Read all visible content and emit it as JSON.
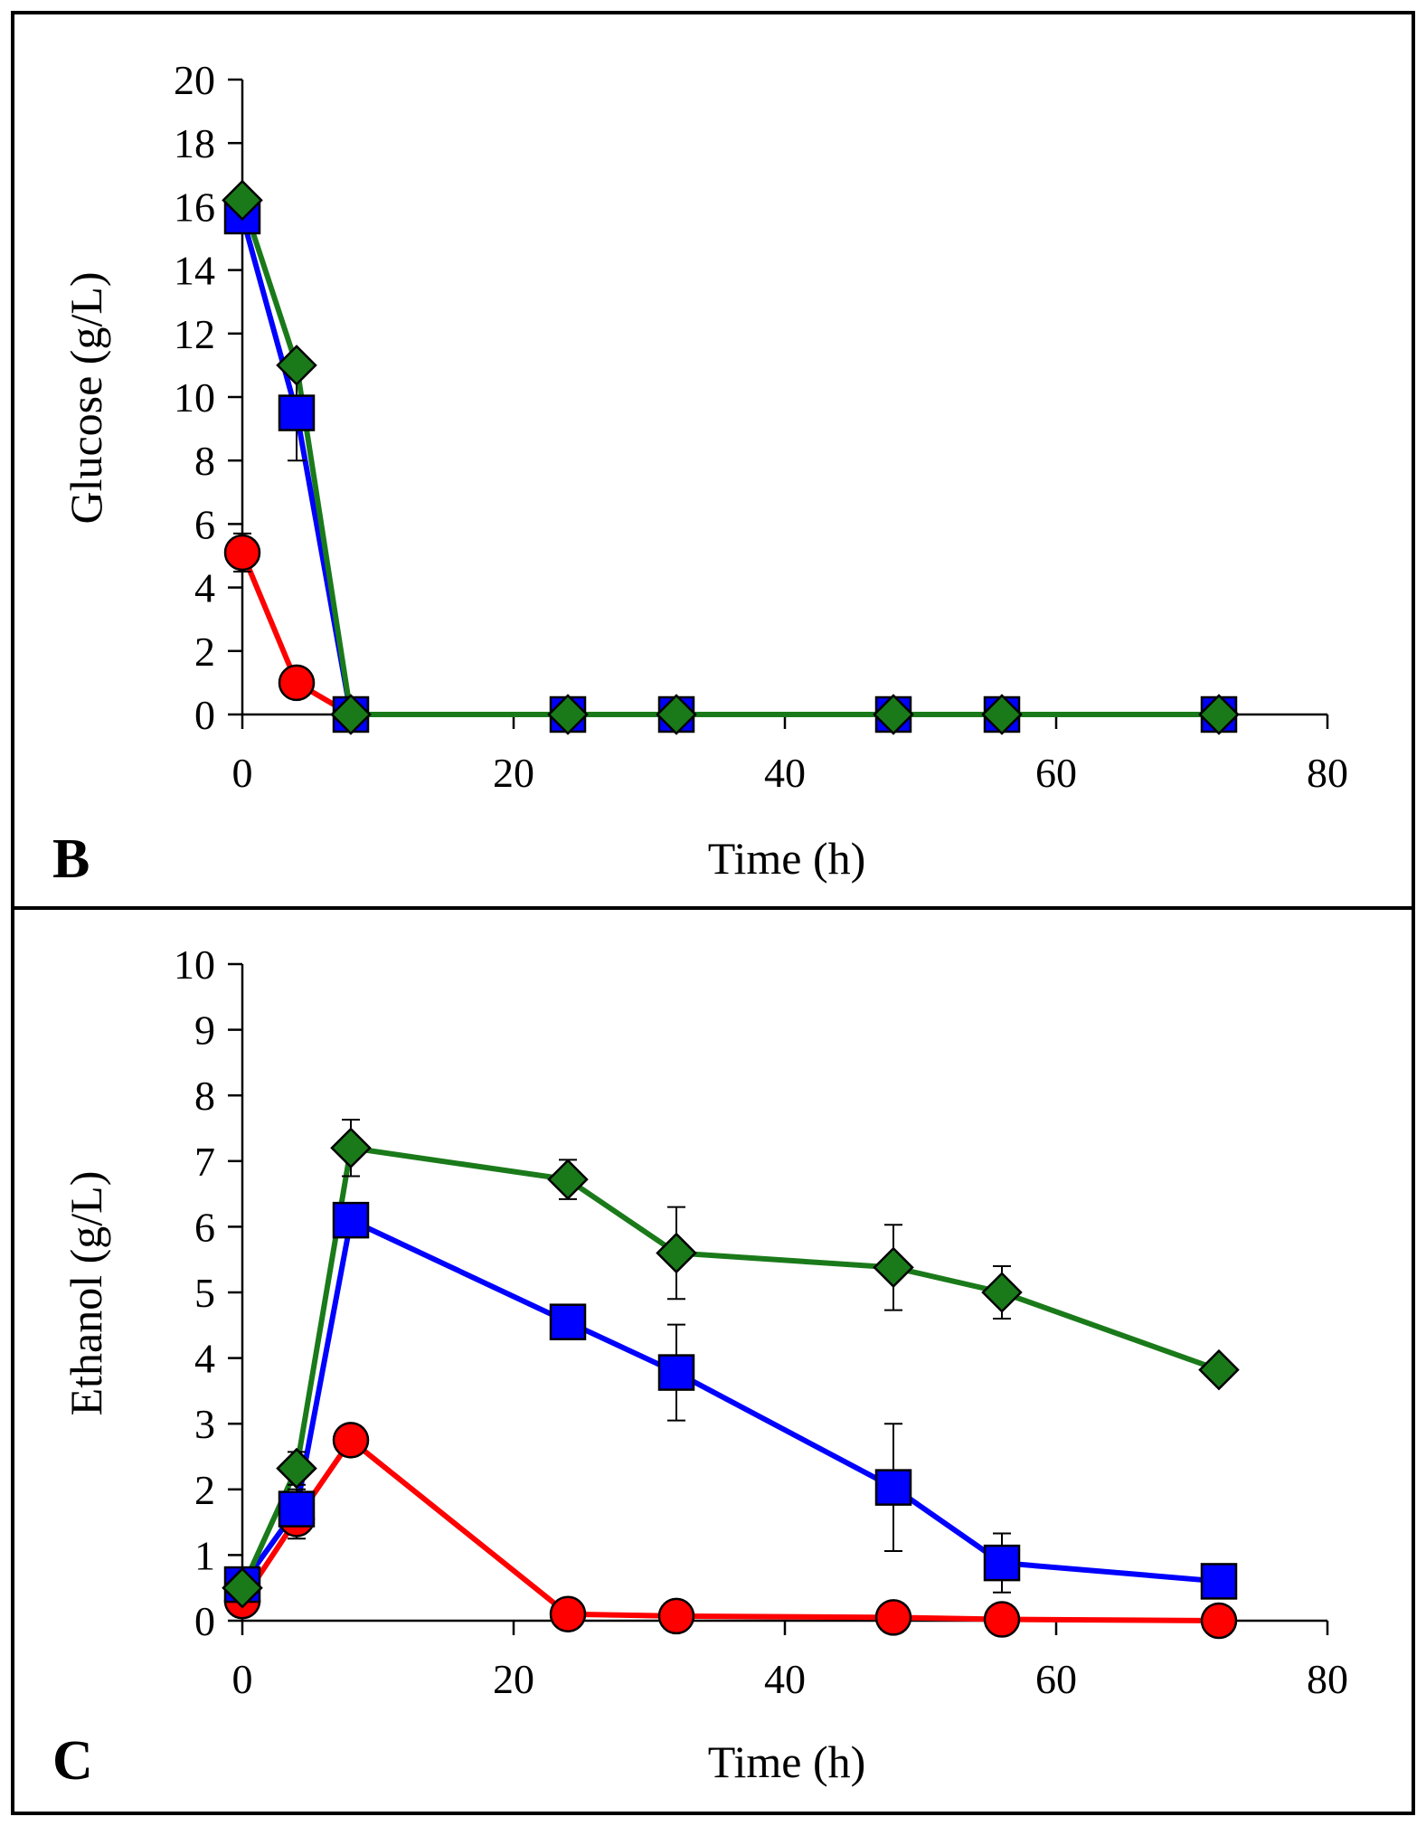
{
  "chart_data": [
    {
      "panel_label": "B",
      "type": "line",
      "xlabel": "Time (h)",
      "ylabel": "Glucose (g/L)",
      "xlim": [
        0,
        80
      ],
      "ylim": [
        0,
        20
      ],
      "xticks": [
        0,
        20,
        40,
        60,
        80
      ],
      "yticks": [
        0,
        2,
        4,
        6,
        8,
        10,
        12,
        14,
        16,
        18,
        20
      ],
      "xtick_labels": [
        "0",
        "20",
        "40",
        "60",
        "80"
      ],
      "ytick_labels": [
        "0",
        "2",
        "4",
        "6",
        "8",
        "10",
        "12",
        "14",
        "16",
        "18",
        "20"
      ],
      "grid": false,
      "legend": "none",
      "x": [
        0,
        4,
        8,
        24,
        32,
        48,
        56,
        72
      ],
      "series": [
        {
          "name": "red-circle",
          "color": "#ff0000",
          "marker": "circle",
          "values": [
            5.1,
            1.0,
            0,
            0,
            0,
            0,
            0,
            0
          ],
          "errors": [
            0.6,
            0.3,
            0,
            0,
            0,
            0,
            0,
            0
          ]
        },
        {
          "name": "blue-square",
          "color": "#0000ff",
          "marker": "square",
          "values": [
            15.7,
            9.5,
            0,
            0,
            0,
            0,
            0,
            0
          ],
          "errors": [
            0.4,
            1.5,
            0,
            0,
            0,
            0,
            0,
            0
          ]
        },
        {
          "name": "green-diamond",
          "color": "#1a7a1a",
          "marker": "diamond",
          "values": [
            16.2,
            11.0,
            0,
            0,
            0,
            0,
            0,
            0
          ],
          "errors": [
            0.2,
            0.3,
            0,
            0,
            0,
            0,
            0,
            0
          ]
        }
      ]
    },
    {
      "panel_label": "C",
      "type": "line",
      "xlabel": "Time (h)",
      "ylabel": "Ethanol (g/L)",
      "xlim": [
        0,
        80
      ],
      "ylim": [
        0,
        10
      ],
      "xticks": [
        0,
        20,
        40,
        60,
        80
      ],
      "yticks": [
        0,
        1,
        2,
        3,
        4,
        5,
        6,
        7,
        8,
        9,
        10
      ],
      "xtick_labels": [
        "0",
        "20",
        "40",
        "60",
        "80"
      ],
      "ytick_labels": [
        "0",
        "1",
        "2",
        "3",
        "4",
        "5",
        "6",
        "7",
        "8",
        "9",
        "10"
      ],
      "grid": false,
      "legend": "none",
      "x": [
        0,
        4,
        8,
        24,
        32,
        48,
        56,
        72
      ],
      "series": [
        {
          "name": "red-circle",
          "color": "#ff0000",
          "marker": "circle",
          "values": [
            0.3,
            1.55,
            2.75,
            0.1,
            0.07,
            0.05,
            0.02,
            0.0
          ],
          "errors": [
            0.05,
            0.3,
            0.05,
            0.03,
            0.02,
            0.02,
            0.02,
            0.02
          ]
        },
        {
          "name": "blue-square",
          "color": "#0000ff",
          "marker": "square",
          "values": [
            0.55,
            1.7,
            6.1,
            4.55,
            3.78,
            2.03,
            0.88,
            0.6
          ],
          "errors": [
            0.1,
            0.3,
            0.1,
            0.1,
            0.73,
            0.97,
            0.45,
            0.25
          ]
        },
        {
          "name": "green-diamond",
          "color": "#1a7a1a",
          "marker": "diamond",
          "values": [
            0.5,
            2.32,
            7.2,
            6.72,
            5.6,
            5.38,
            5.0,
            3.82
          ],
          "errors": [
            0.1,
            0.25,
            0.43,
            0.3,
            0.7,
            0.65,
            0.4,
            0.05
          ]
        }
      ]
    }
  ]
}
